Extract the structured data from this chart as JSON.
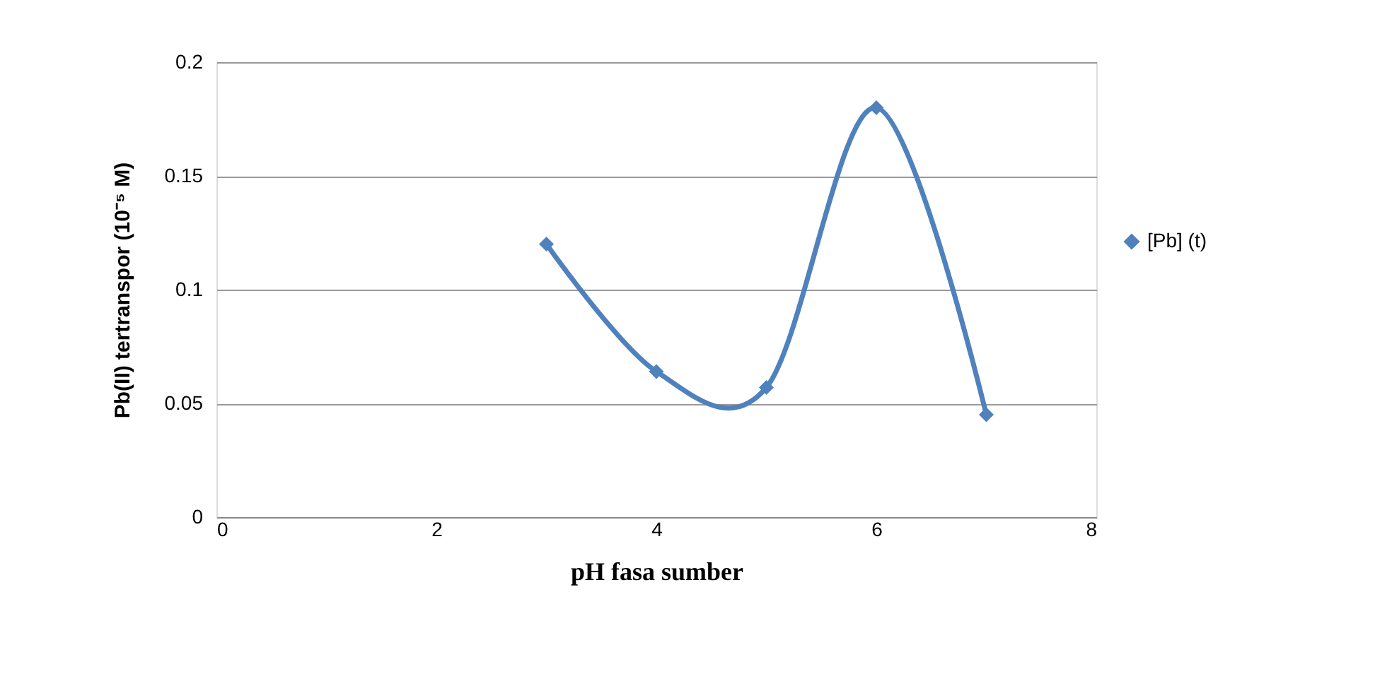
{
  "chart_data": {
    "type": "line",
    "xlabel": "pH fasa sumber",
    "ylabel": "Pb(II) tertranspor (10⁻⁵ M)",
    "x": [
      3,
      4,
      5,
      6,
      7
    ],
    "series": [
      {
        "name": "[Pb] (t)",
        "color": "#4f81bd",
        "values": [
          0.12,
          0.064,
          0.057,
          0.18,
          0.045
        ]
      }
    ],
    "xlim": [
      0,
      8
    ],
    "xticks": [
      0,
      2,
      4,
      6,
      8
    ],
    "ylim": [
      0,
      0.2
    ],
    "yticks": [
      0,
      0.05,
      0.1,
      0.15,
      0.2
    ],
    "grid": "y",
    "legend": "right",
    "marker": "diamond",
    "line_style": "solid"
  }
}
